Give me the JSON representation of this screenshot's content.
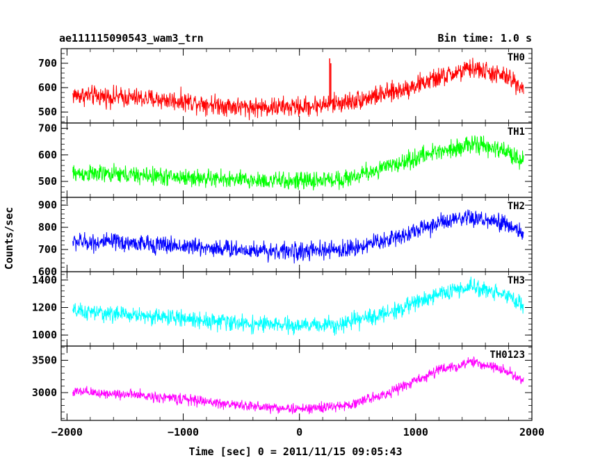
{
  "chart_data": {
    "type": "line",
    "title": "ae111115090543_wam3_trn",
    "subtitle": "Bin time: 1.0 s",
    "xlabel": "Time [sec] 0 = 2011/11/15 09:05:43",
    "ylabel": "Counts/sec",
    "xlim": [
      -2050,
      2000
    ],
    "x_ticks": [
      -2000,
      -1000,
      0,
      1000,
      2000
    ],
    "x_tick_labels": [
      "−2000",
      "−1000",
      "0",
      "1000",
      "2000"
    ],
    "data_x_range": [
      -1950,
      1930
    ],
    "panels": [
      {
        "label": "TH0",
        "color": "#ff0000",
        "ylim": [
          455,
          760
        ],
        "y_ticks": [
          500,
          600,
          700
        ],
        "noise_half_width": 55,
        "trend": [
          [
            -1950,
            570
          ],
          [
            -1500,
            560
          ],
          [
            -1000,
            545
          ],
          [
            -500,
            520
          ],
          [
            0,
            520
          ],
          [
            400,
            540
          ],
          [
            800,
            580
          ],
          [
            1200,
            640
          ],
          [
            1500,
            680
          ],
          [
            1800,
            640
          ],
          [
            1930,
            600
          ]
        ],
        "spikes": [
          [
            260,
            720
          ],
          [
            270,
            700
          ]
        ]
      },
      {
        "label": "TH1",
        "color": "#00ff00",
        "ylim": [
          440,
          720
        ],
        "y_ticks": [
          500,
          600,
          700
        ],
        "noise_half_width": 45,
        "trend": [
          [
            -1950,
            530
          ],
          [
            -1500,
            525
          ],
          [
            -1000,
            515
          ],
          [
            -500,
            505
          ],
          [
            0,
            500
          ],
          [
            400,
            510
          ],
          [
            800,
            560
          ],
          [
            1200,
            615
          ],
          [
            1500,
            640
          ],
          [
            1800,
            610
          ],
          [
            1930,
            575
          ]
        ],
        "spikes": []
      },
      {
        "label": "TH2",
        "color": "#0000ff",
        "ylim": [
          600,
          935
        ],
        "y_ticks": [
          600,
          700,
          800,
          900
        ],
        "noise_half_width": 55,
        "trend": [
          [
            -1950,
            735
          ],
          [
            -1500,
            730
          ],
          [
            -1000,
            715
          ],
          [
            -500,
            700
          ],
          [
            0,
            690
          ],
          [
            400,
            700
          ],
          [
            800,
            750
          ],
          [
            1200,
            820
          ],
          [
            1500,
            840
          ],
          [
            1800,
            810
          ],
          [
            1930,
            770
          ]
        ],
        "spikes": []
      },
      {
        "label": "TH3",
        "color": "#00ffff",
        "ylim": [
          920,
          1460
        ],
        "y_ticks": [
          1000,
          1200,
          1400
        ],
        "noise_half_width": 80,
        "trend": [
          [
            -1950,
            1170
          ],
          [
            -1500,
            1150
          ],
          [
            -1000,
            1120
          ],
          [
            -500,
            1085
          ],
          [
            0,
            1065
          ],
          [
            400,
            1085
          ],
          [
            800,
            1170
          ],
          [
            1200,
            1300
          ],
          [
            1500,
            1350
          ],
          [
            1800,
            1290
          ],
          [
            1930,
            1200
          ]
        ],
        "spikes": []
      },
      {
        "label": "TH0123",
        "color": "#ff00ff",
        "ylim": [
          2570,
          3720
        ],
        "y_ticks": [
          3000,
          3500
        ],
        "noise_half_width": 110,
        "trend": [
          [
            -1950,
            3010
          ],
          [
            -1500,
            2975
          ],
          [
            -1000,
            2900
          ],
          [
            -500,
            2800
          ],
          [
            0,
            2745
          ],
          [
            400,
            2795
          ],
          [
            800,
            3020
          ],
          [
            1200,
            3350
          ],
          [
            1500,
            3470
          ],
          [
            1800,
            3330
          ],
          [
            1930,
            3170
          ]
        ],
        "spikes": []
      }
    ]
  }
}
